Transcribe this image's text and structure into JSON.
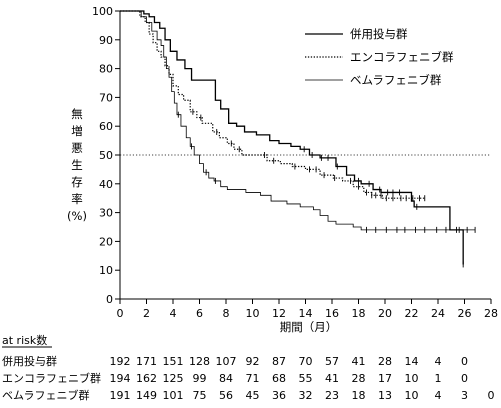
{
  "chart_data": {
    "type": "line",
    "subtype": "kaplan-meier",
    "xlabel": "期間（月）",
    "ylabel_chars": [
      "無",
      "増",
      "悪",
      "生",
      "存",
      "率",
      "(%)"
    ],
    "xlim": [
      0,
      28
    ],
    "ylim": [
      0,
      100
    ],
    "xticks": [
      0,
      2,
      4,
      6,
      8,
      10,
      12,
      14,
      16,
      18,
      20,
      22,
      24,
      26,
      28
    ],
    "yticks": [
      0,
      10,
      20,
      30,
      40,
      50,
      60,
      70,
      80,
      90,
      100
    ],
    "reference_line": {
      "y": 50,
      "style": "dotted"
    },
    "legend_position": "top-right",
    "series": [
      {
        "name": "併用投与群",
        "line_style": "solid",
        "line_width": 1.3,
        "color": "#000000",
        "steps": [
          [
            0,
            100
          ],
          [
            1.8,
            99
          ],
          [
            2.2,
            98
          ],
          [
            2.6,
            96
          ],
          [
            3.0,
            94
          ],
          [
            3.4,
            90
          ],
          [
            3.8,
            86
          ],
          [
            4.3,
            83
          ],
          [
            4.9,
            80
          ],
          [
            5.4,
            76
          ],
          [
            7.2,
            69
          ],
          [
            7.6,
            66
          ],
          [
            8.2,
            61
          ],
          [
            8.8,
            60
          ],
          [
            9.4,
            58
          ],
          [
            10.3,
            57
          ],
          [
            11.3,
            55
          ],
          [
            12.0,
            54
          ],
          [
            12.9,
            53
          ],
          [
            13.6,
            52
          ],
          [
            14.3,
            50
          ],
          [
            15.1,
            49
          ],
          [
            16.3,
            46
          ],
          [
            17.1,
            43
          ],
          [
            17.7,
            41
          ],
          [
            18.2,
            40
          ],
          [
            19.1,
            38
          ],
          [
            19.7,
            37
          ],
          [
            21.3,
            37
          ],
          [
            22.0,
            34
          ],
          [
            22.2,
            32
          ],
          [
            24.9,
            24
          ],
          [
            25.9,
            12
          ]
        ],
        "end_x": 25.9,
        "censor_times": [
          13.9,
          14.5,
          15.2,
          15.7,
          16.4,
          18.0,
          18.8,
          19.6,
          20.2,
          20.6,
          21.1,
          22.4,
          25.6,
          25.9
        ]
      },
      {
        "name": "エンコラフェニブ群",
        "line_style": "dotted",
        "line_width": 1.2,
        "color": "#000000",
        "steps": [
          [
            0,
            100
          ],
          [
            1.5,
            98
          ],
          [
            1.9,
            96
          ],
          [
            2.2,
            92
          ],
          [
            2.5,
            89
          ],
          [
            2.8,
            86
          ],
          [
            3.1,
            84
          ],
          [
            3.4,
            81
          ],
          [
            3.7,
            78
          ],
          [
            4.0,
            74
          ],
          [
            4.4,
            71
          ],
          [
            4.8,
            69
          ],
          [
            5.3,
            65
          ],
          [
            5.8,
            63
          ],
          [
            6.2,
            61
          ],
          [
            7.0,
            58
          ],
          [
            7.5,
            56
          ],
          [
            8.1,
            54
          ],
          [
            8.6,
            52
          ],
          [
            9.2,
            50
          ],
          [
            10.1,
            50
          ],
          [
            11.1,
            48
          ],
          [
            12.1,
            47
          ],
          [
            13.0,
            46
          ],
          [
            14.0,
            45
          ],
          [
            15.1,
            43
          ],
          [
            16.1,
            42
          ],
          [
            16.8,
            41
          ],
          [
            17.6,
            39
          ],
          [
            18.4,
            37
          ],
          [
            19.0,
            36
          ],
          [
            19.8,
            35
          ],
          [
            20.4,
            35
          ]
        ],
        "end_x": 23.0,
        "censor_times": [
          5.5,
          6.1,
          7.3,
          8.4,
          9.0,
          10.9,
          11.6,
          13.2,
          14.3,
          14.8,
          15.4,
          16.2,
          17.4,
          18.0,
          18.6,
          19.0,
          19.3,
          19.7,
          20.1,
          20.6,
          21.2,
          21.6,
          22.1,
          22.6,
          23.0
        ]
      },
      {
        "name": "ベムラフェニブ群",
        "line_style": "solid",
        "line_width": 0.8,
        "color": "#000000",
        "steps": [
          [
            0,
            100
          ],
          [
            1.6,
            98
          ],
          [
            2.0,
            96
          ],
          [
            2.4,
            93
          ],
          [
            2.8,
            90
          ],
          [
            3.1,
            88
          ],
          [
            3.3,
            84
          ],
          [
            3.5,
            80
          ],
          [
            3.7,
            77
          ],
          [
            3.9,
            72
          ],
          [
            4.1,
            68
          ],
          [
            4.3,
            64
          ],
          [
            4.6,
            60
          ],
          [
            5.0,
            56
          ],
          [
            5.3,
            53
          ],
          [
            5.6,
            50
          ],
          [
            6.0,
            47
          ],
          [
            6.3,
            44
          ],
          [
            6.7,
            42
          ],
          [
            7.1,
            41
          ],
          [
            7.6,
            39
          ],
          [
            8.1,
            38
          ],
          [
            8.7,
            38
          ],
          [
            9.5,
            37
          ],
          [
            10.6,
            36
          ],
          [
            11.4,
            34
          ],
          [
            12.6,
            33
          ],
          [
            13.6,
            32
          ],
          [
            14.6,
            31
          ],
          [
            15.1,
            29
          ],
          [
            15.7,
            27
          ],
          [
            16.3,
            26
          ],
          [
            17.6,
            25
          ],
          [
            18.2,
            24
          ],
          [
            26.0,
            24
          ]
        ],
        "end_x": 26.8,
        "censor_times": [
          4.4,
          5.4,
          6.5,
          7.2,
          18.6,
          19.3,
          20.1,
          20.9,
          21.5,
          22.3,
          23.0,
          23.9,
          24.6,
          25.4,
          26.2,
          26.8
        ]
      }
    ],
    "risk_table": {
      "title": "at risk数",
      "times": [
        0,
        2,
        4,
        6,
        8,
        10,
        12,
        14,
        16,
        18,
        20,
        22,
        24,
        26,
        28
      ],
      "rows": [
        {
          "name": "併用投与群",
          "values": [
            "192",
            "171",
            "151",
            "128",
            "107",
            "92",
            "87",
            "70",
            "57",
            "41",
            "28",
            "14",
            "4",
            "0",
            ""
          ]
        },
        {
          "name": "エンコラフェニブ群",
          "values": [
            "194",
            "162",
            "125",
            "99",
            "84",
            "71",
            "68",
            "55",
            "41",
            "28",
            "17",
            "10",
            "1",
            "0",
            ""
          ]
        },
        {
          "name": "ベムラフェニブ群",
          "values": [
            "191",
            "149",
            "101",
            "75",
            "56",
            "45",
            "36",
            "32",
            "23",
            "18",
            "13",
            "10",
            "4",
            "3",
            "0"
          ]
        }
      ]
    }
  }
}
